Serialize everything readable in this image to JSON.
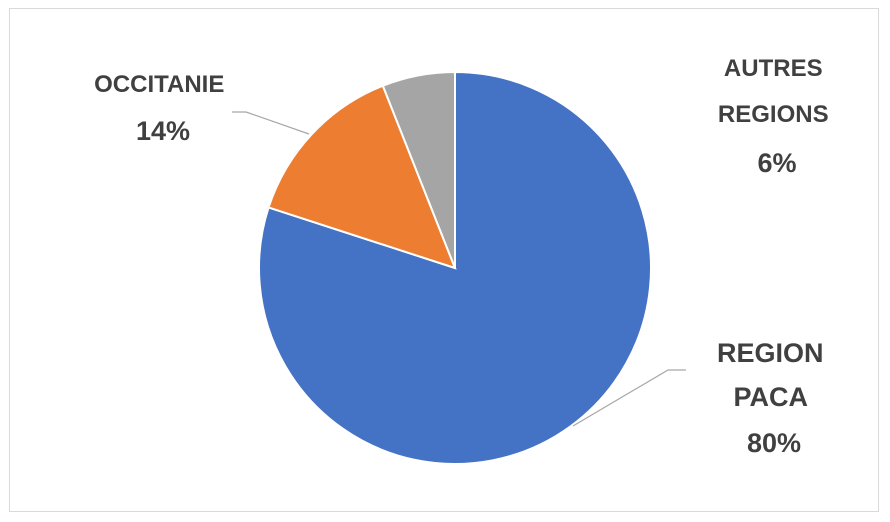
{
  "chart_data": {
    "type": "pie",
    "title": "",
    "slices": [
      {
        "name": "REGION PACA",
        "value": 80,
        "display": "80%",
        "color": "#4472C4",
        "label_lines": [
          "REGION",
          "PACA",
          "80%"
        ]
      },
      {
        "name": "OCCITANIE",
        "value": 14,
        "display": "14%",
        "color": "#ED7D31",
        "label_lines": [
          "OCCITANIE",
          "14%"
        ]
      },
      {
        "name": "AUTRES REGIONS",
        "value": 6,
        "display": "6%",
        "color": "#A5A5A5",
        "label_lines": [
          "AUTRES",
          "REGIONS",
          "6%"
        ]
      }
    ],
    "start_angle_deg": 0,
    "direction": "clockwise",
    "legend": "none",
    "data_labels": "outside with leader lines"
  }
}
